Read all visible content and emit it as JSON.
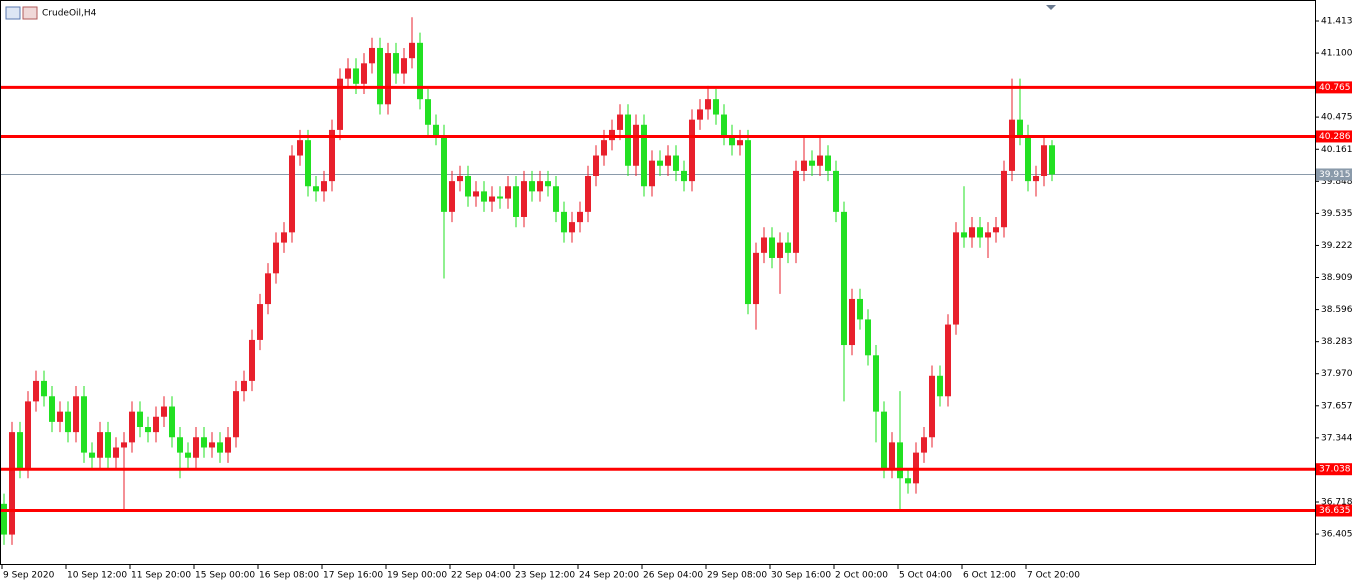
{
  "chart_data": {
    "type": "candlestick",
    "title": "CrudeOil,H4",
    "categories": [
      "9 Sep 2020",
      null,
      null,
      null,
      null,
      null,
      null,
      null,
      "10 Sep 12:00",
      null,
      null,
      null,
      null,
      null,
      null,
      null,
      "11 Sep 20:00",
      null,
      null,
      null,
      null,
      null,
      null,
      null,
      "15 Sep 00:00",
      null,
      null,
      null,
      null,
      null,
      null,
      null,
      "16 Sep 08:00",
      null,
      null,
      null,
      null,
      null,
      null,
      null,
      "17 Sep 16:00",
      null,
      null,
      null,
      null,
      null,
      null,
      null,
      "19 Sep 00:00",
      null,
      null,
      null,
      null,
      null,
      null,
      null,
      "22 Sep 04:00",
      null,
      null,
      null,
      null,
      null,
      null,
      null,
      "23 Sep 12:00",
      null,
      null,
      null,
      null,
      null,
      null,
      null,
      "24 Sep 20:00",
      null,
      null,
      null,
      null,
      null,
      null,
      null,
      "26 Sep 04:00",
      null,
      null,
      null,
      null,
      null,
      null,
      null,
      "29 Sep 08:00",
      null,
      null,
      null,
      null,
      null,
      null,
      null,
      "30 Sep 16:00",
      null,
      null,
      null,
      null,
      null,
      null,
      null,
      "2 Oct 00:00",
      null,
      null,
      null,
      null,
      null,
      null,
      null,
      "5 Oct 04:00",
      null,
      null,
      null,
      null,
      null,
      null,
      null,
      "6 Oct 12:00",
      null,
      null,
      null,
      null,
      null,
      null,
      null,
      "7 Oct 20:00",
      null,
      null,
      null
    ],
    "open": [
      36.7,
      36.4,
      37.4,
      37.05,
      37.7,
      37.9,
      37.75,
      37.5,
      37.6,
      37.4,
      37.75,
      37.2,
      37.15,
      37.4,
      37.15,
      37.25,
      37.3,
      37.6,
      37.45,
      37.4,
      37.55,
      37.65,
      37.35,
      37.2,
      37.15,
      37.35,
      37.25,
      37.3,
      37.2,
      37.35,
      37.8,
      37.9,
      38.3,
      38.65,
      38.95,
      39.25,
      39.35,
      40.1,
      40.25,
      39.8,
      39.75,
      39.85,
      40.35,
      40.85,
      40.95,
      40.8,
      41.0,
      41.15,
      40.6,
      41.1,
      40.9,
      41.05,
      41.2,
      40.65,
      40.4,
      40.3,
      39.55,
      39.85,
      39.9,
      39.7,
      39.75,
      39.65,
      39.7,
      39.68,
      39.8,
      39.5,
      39.85,
      39.75,
      39.85,
      39.8,
      39.55,
      39.35,
      39.45,
      39.55,
      39.9,
      40.1,
      40.25,
      40.35,
      40.5,
      40.0,
      40.4,
      39.8,
      40.05,
      40.0,
      40.1,
      39.95,
      39.85,
      40.45,
      40.55,
      40.65,
      40.5,
      40.3,
      40.2,
      40.25,
      38.65,
      39.15,
      39.3,
      39.1,
      39.25,
      39.15,
      39.95,
      40.05,
      40.0,
      40.1,
      39.95,
      39.55,
      38.25,
      38.7,
      38.5,
      38.15,
      37.6,
      37.05,
      37.3,
      36.95,
      36.9,
      37.2,
      37.35,
      37.95,
      37.75,
      38.45,
      39.35,
      39.3,
      39.4,
      39.3,
      39.35,
      39.4,
      39.95,
      40.45,
      40.3,
      39.85,
      39.9,
      40.2
    ],
    "high": [
      36.8,
      37.5,
      37.5,
      37.8,
      38.0,
      38.0,
      37.85,
      37.7,
      37.7,
      37.85,
      37.85,
      37.3,
      37.5,
      37.5,
      37.35,
      37.4,
      37.7,
      37.7,
      37.55,
      37.65,
      37.75,
      37.75,
      37.45,
      37.3,
      37.45,
      37.45,
      37.4,
      37.4,
      37.45,
      37.9,
      38.0,
      38.4,
      38.75,
      39.05,
      39.35,
      39.45,
      40.2,
      40.35,
      40.35,
      39.9,
      39.95,
      40.45,
      40.95,
      41.05,
      41.05,
      41.1,
      41.25,
      41.25,
      41.2,
      41.2,
      41.15,
      41.45,
      41.3,
      40.75,
      40.5,
      40.4,
      39.95,
      40.0,
      40.0,
      39.85,
      39.85,
      39.8,
      39.8,
      39.9,
      39.9,
      39.95,
      39.95,
      39.95,
      39.95,
      39.9,
      39.65,
      39.55,
      39.65,
      40.0,
      40.2,
      40.35,
      40.45,
      40.6,
      40.6,
      40.5,
      40.5,
      40.15,
      40.15,
      40.2,
      40.2,
      40.05,
      40.55,
      40.65,
      40.78,
      40.75,
      40.6,
      40.4,
      40.35,
      40.35,
      39.25,
      39.4,
      39.4,
      39.35,
      39.35,
      40.05,
      40.3,
      40.15,
      40.3,
      40.2,
      40.05,
      39.65,
      38.8,
      38.8,
      38.6,
      38.25,
      37.7,
      37.4,
      37.8,
      37.05,
      37.3,
      37.45,
      38.05,
      38.05,
      38.55,
      39.45,
      39.8,
      39.5,
      39.5,
      39.45,
      39.5,
      40.05,
      40.85,
      40.85,
      40.4,
      40.0,
      40.3,
      40.25
    ],
    "low": [
      36.3,
      36.3,
      36.95,
      36.95,
      37.6,
      37.65,
      37.4,
      37.4,
      37.3,
      37.3,
      37.1,
      37.05,
      37.05,
      37.05,
      37.05,
      36.65,
      37.2,
      37.35,
      37.3,
      37.3,
      37.45,
      37.25,
      36.95,
      37.05,
      37.05,
      37.15,
      37.15,
      37.1,
      37.1,
      37.25,
      37.7,
      37.8,
      38.2,
      38.55,
      38.85,
      39.15,
      39.25,
      40.0,
      39.7,
      39.65,
      39.65,
      39.75,
      40.25,
      40.75,
      40.7,
      40.7,
      40.9,
      40.5,
      40.5,
      40.8,
      40.8,
      40.95,
      40.55,
      40.3,
      40.2,
      38.9,
      39.45,
      39.75,
      39.6,
      39.6,
      39.55,
      39.55,
      39.58,
      39.58,
      39.4,
      39.4,
      39.65,
      39.65,
      39.7,
      39.45,
      39.25,
      39.25,
      39.35,
      39.45,
      39.8,
      40.0,
      40.15,
      40.25,
      39.9,
      39.9,
      39.7,
      39.7,
      39.9,
      39.9,
      39.85,
      39.75,
      39.75,
      40.35,
      40.45,
      40.4,
      40.2,
      40.1,
      40.1,
      38.55,
      38.4,
      39.05,
      39.0,
      38.75,
      39.05,
      39.05,
      39.85,
      39.9,
      39.9,
      39.85,
      39.45,
      37.7,
      38.15,
      38.4,
      38.05,
      37.3,
      36.95,
      36.95,
      36.65,
      36.8,
      36.8,
      37.1,
      37.25,
      37.65,
      37.65,
      38.35,
      39.2,
      39.2,
      39.2,
      39.1,
      39.25,
      39.3,
      39.85,
      40.2,
      39.75,
      39.7,
      39.8,
      39.85
    ],
    "close": [
      36.4,
      37.4,
      37.05,
      37.7,
      37.9,
      37.75,
      37.5,
      37.6,
      37.4,
      37.75,
      37.2,
      37.15,
      37.4,
      37.15,
      37.25,
      37.3,
      37.6,
      37.45,
      37.4,
      37.55,
      37.65,
      37.35,
      37.2,
      37.15,
      37.35,
      37.25,
      37.3,
      37.2,
      37.35,
      37.8,
      37.9,
      38.3,
      38.65,
      38.95,
      39.25,
      39.35,
      40.1,
      40.25,
      39.8,
      39.75,
      39.85,
      40.35,
      40.85,
      40.95,
      40.8,
      41.0,
      41.15,
      40.6,
      41.1,
      40.9,
      41.05,
      41.2,
      40.65,
      40.4,
      40.3,
      39.55,
      39.85,
      39.9,
      39.7,
      39.75,
      39.65,
      39.7,
      39.68,
      39.8,
      39.5,
      39.85,
      39.75,
      39.85,
      39.8,
      39.55,
      39.35,
      39.45,
      39.55,
      39.9,
      40.1,
      40.25,
      40.35,
      40.5,
      40.0,
      40.4,
      39.8,
      40.05,
      40.0,
      40.1,
      39.95,
      39.85,
      40.45,
      40.55,
      40.65,
      40.5,
      40.3,
      40.2,
      40.25,
      38.65,
      39.15,
      39.3,
      39.1,
      39.25,
      39.15,
      39.95,
      40.05,
      40.0,
      40.1,
      39.95,
      39.55,
      38.25,
      38.7,
      38.5,
      38.15,
      37.6,
      37.05,
      37.3,
      36.95,
      36.9,
      37.2,
      37.35,
      37.95,
      37.75,
      38.45,
      39.35,
      39.3,
      39.4,
      39.3,
      39.35,
      39.4,
      39.95,
      40.45,
      40.3,
      39.85,
      39.9,
      40.2,
      39.915
    ],
    "up_color": "#e8202c",
    "down_color": "#22e022",
    "ylim": [
      36.103,
      41.618
    ],
    "yticks": [
      41.413,
      {
        "value": 41.1,
        "label": "41.100"
      },
      40.475,
      40.161,
      39.848,
      39.535,
      39.222,
      38.909,
      38.596,
      38.283,
      {
        "value": 37.97,
        "label": "37.970"
      },
      37.657,
      37.344,
      36.718,
      36.405
    ],
    "levels": [
      40.765,
      40.286,
      37.038,
      36.635
    ],
    "level_color": "#ff0000",
    "last_price": 39.915,
    "last_price_color": "#8a9aaa"
  }
}
